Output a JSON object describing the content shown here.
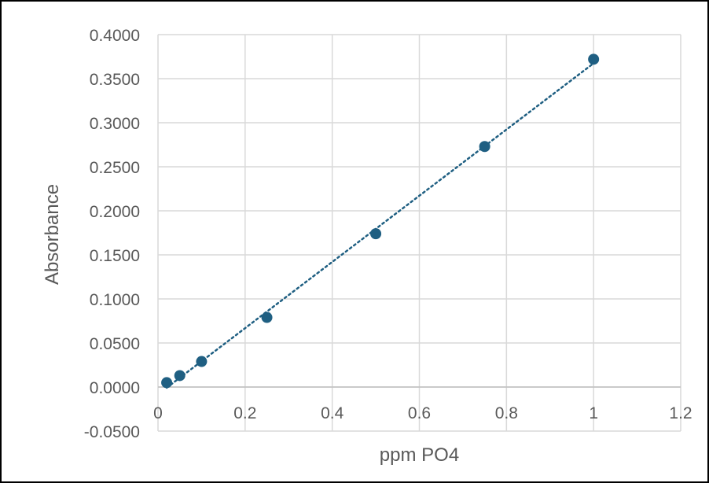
{
  "chart_data": {
    "type": "scatter",
    "title": "",
    "xlabel": "ppm PO4",
    "ylabel": "Absorbance",
    "xlim": [
      0,
      1.2
    ],
    "ylim": [
      -0.05,
      0.4
    ],
    "x_ticks": [
      "0",
      "0.2",
      "0.4",
      "0.6",
      "0.8",
      "1",
      "1.2"
    ],
    "y_ticks": [
      "-0.0500",
      "0.0000",
      "0.0500",
      "0.1000",
      "0.1500",
      "0.2000",
      "0.2500",
      "0.3000",
      "0.3500",
      "0.4000"
    ],
    "grid": true,
    "series": [
      {
        "x": [
          0.02,
          0.05,
          0.1,
          0.25,
          0.5,
          0.75,
          1.0
        ],
        "y": [
          0.005,
          0.013,
          0.029,
          0.079,
          0.174,
          0.273,
          0.372
        ],
        "color": "#1f5f82"
      }
    ],
    "trendline": {
      "type": "linear",
      "style": "dotted",
      "color": "#1f5f82",
      "x_range": [
        0.02,
        1.0
      ]
    },
    "legend": "none"
  }
}
